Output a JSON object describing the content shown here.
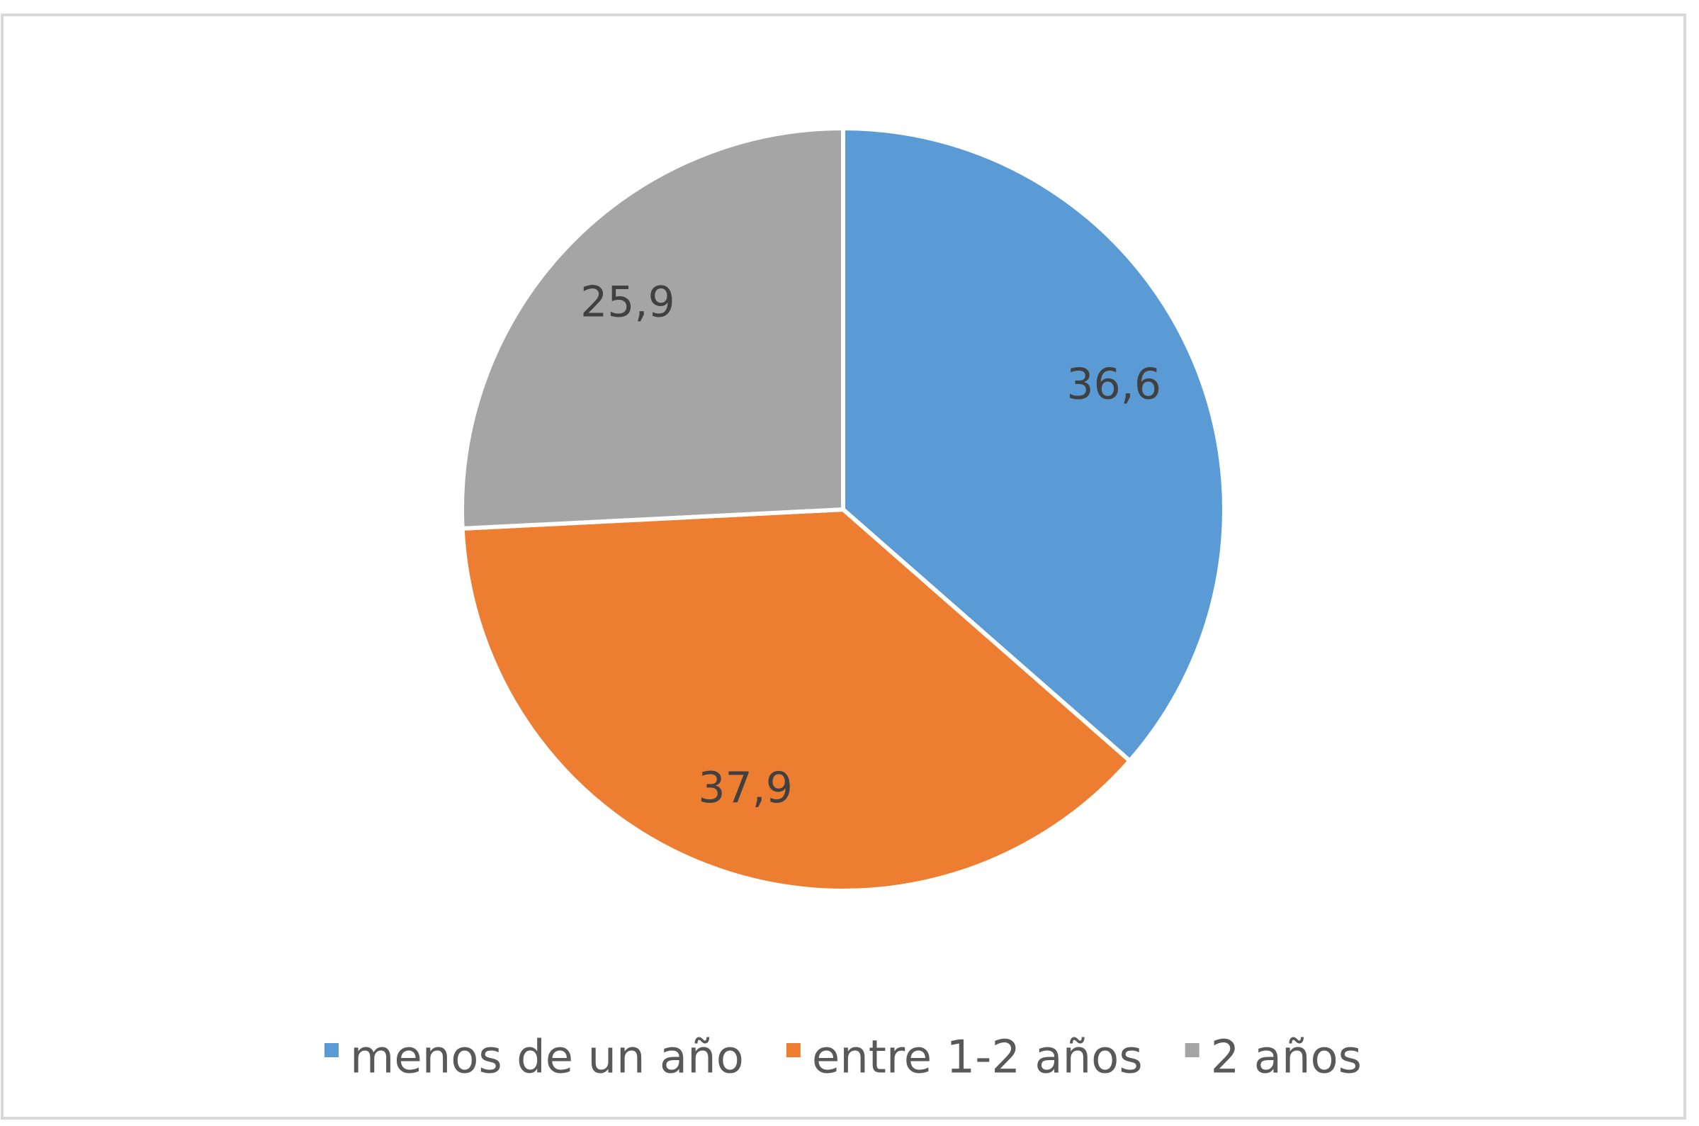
{
  "chart_data": {
    "type": "pie",
    "categories": [
      "menos de un año",
      "entre 1-2 años",
      "2 años"
    ],
    "values": [
      36.6,
      37.9,
      25.9
    ],
    "value_labels": [
      "36,6",
      "37,9",
      "25,9"
    ],
    "colors": [
      "#5b9bd5",
      "#ed7d31",
      "#a5a5a5"
    ],
    "legend": "bottom"
  }
}
